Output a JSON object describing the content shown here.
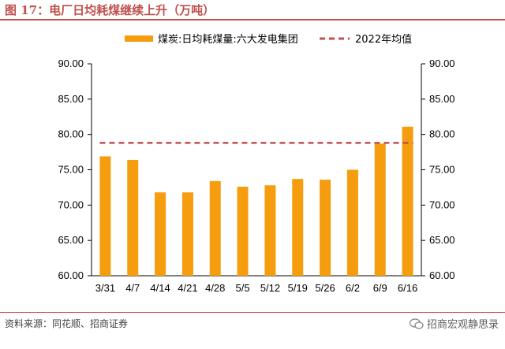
{
  "header": {
    "title": "图 17：电厂日均耗煤继续上升（万吨）"
  },
  "footer": {
    "source": "资料来源：同花顺、招商证券",
    "watermark": "招商宏观静思录"
  },
  "colors": {
    "bar": "#f59d0e",
    "reference": "#c0504d",
    "title": "#c0504d"
  },
  "chart_data": {
    "type": "bar",
    "categories": [
      "3/31",
      "4/7",
      "4/14",
      "4/21",
      "4/28",
      "5/5",
      "5/12",
      "5/19",
      "5/26",
      "6/2",
      "6/9",
      "6/16"
    ],
    "series": [
      {
        "name": "煤炭:日均耗煤量:六大发电集团",
        "values": [
          76.9,
          76.4,
          71.8,
          71.8,
          73.4,
          72.6,
          72.8,
          73.7,
          73.6,
          75.0,
          78.7,
          81.1
        ]
      }
    ],
    "reference_lines": [
      {
        "name": "2022年均值",
        "value": 78.8,
        "style": "dashed"
      }
    ],
    "ylim": [
      60,
      90
    ],
    "yticks": [
      "60.00",
      "65.00",
      "70.00",
      "75.00",
      "80.00",
      "85.00",
      "90.00"
    ],
    "y2ticks": [
      "60.00",
      "65.00",
      "70.00",
      "75.00",
      "80.00",
      "85.00",
      "90.00"
    ],
    "grid": false,
    "legend_position": "top"
  }
}
